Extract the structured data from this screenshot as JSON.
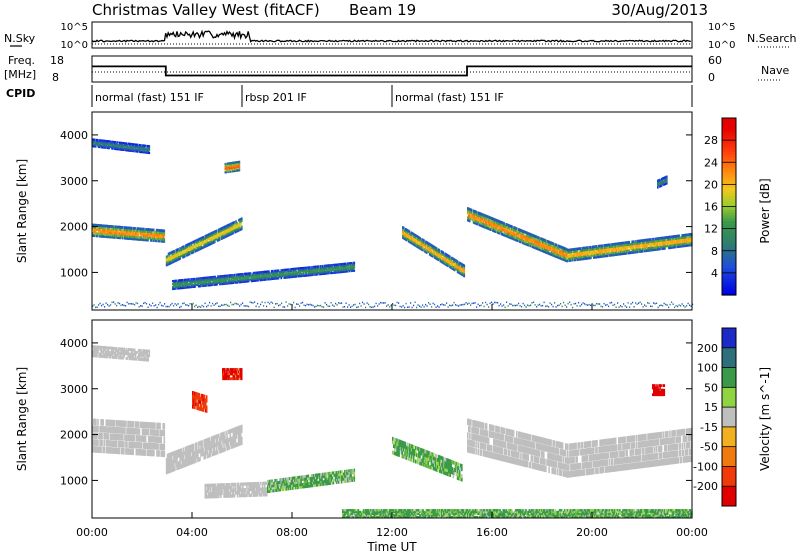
{
  "header": {
    "title": "Christmas Valley West (fitACF)",
    "beam": "Beam 19",
    "date": "30/Aug/2013"
  },
  "top_panels": {
    "nsky_label": "N.Sky",
    "nsearch_label": "N.Search",
    "nave_label": "Nave",
    "freq_label": "Freq.",
    "freq_unit": "[MHz]",
    "cpid_label": "CPID",
    "count_tick_high": "10^5",
    "count_tick_low": "10^0",
    "freq_ticks": [
      "18",
      "8"
    ],
    "nave_ticks": [
      "60",
      "0"
    ]
  },
  "cpid_segments": [
    {
      "label": "normal (fast) 151 IF",
      "start": 0,
      "end": 6
    },
    {
      "label": "rbsp 201 IF",
      "start": 6,
      "end": 12
    },
    {
      "label": "normal (fast) 151 IF",
      "start": 12,
      "end": 24
    }
  ],
  "axes": {
    "xlabel": "Time UT",
    "xticks": [
      "00:00",
      "04:00",
      "08:00",
      "12:00",
      "16:00",
      "20:00",
      "00:00"
    ],
    "ylabel": "Slant Range [km]",
    "yticks": [
      "1000",
      "2000",
      "3000",
      "4000"
    ]
  },
  "power_scale": {
    "label": "Power [dB]",
    "ticks": [
      "4",
      "8",
      "12",
      "16",
      "20",
      "24",
      "28"
    ]
  },
  "velocity_scale": {
    "label": "Velocity [m s^-1]",
    "ticks": [
      "200",
      "100",
      "50",
      "15",
      "-15",
      "-50",
      "-100",
      "-200"
    ]
  },
  "chart_data": {
    "type": "heatmap",
    "x_range_hours": [
      0,
      24
    ],
    "y_range_km": [
      180,
      4500
    ],
    "freq_mhz": [
      {
        "start": 0,
        "end": 2.95,
        "value": 14
      },
      {
        "start": 2.95,
        "end": 15.0,
        "value": 10.5
      },
      {
        "start": 15.0,
        "end": 24,
        "value": 14
      }
    ],
    "power_bands": [
      {
        "t0": 0.0,
        "t1": 2.9,
        "r_start": 1950,
        "r_end": 1820,
        "width": 230,
        "peak": 26
      },
      {
        "t0": 0.0,
        "t1": 2.3,
        "r_start": 3850,
        "r_end": 3700,
        "width": 150,
        "peak": 11
      },
      {
        "t0": 2.95,
        "t1": 6.0,
        "r_start": 1300,
        "r_end": 2100,
        "width": 220,
        "peak": 22
      },
      {
        "t0": 3.2,
        "t1": 10.5,
        "r_start": 750,
        "r_end": 1150,
        "width": 170,
        "peak": 14
      },
      {
        "t0": 5.3,
        "t1": 5.9,
        "r_start": 3300,
        "r_end": 3350,
        "width": 180,
        "peak": 28
      },
      {
        "t0": 12.4,
        "t1": 14.9,
        "r_start": 1900,
        "r_end": 1050,
        "width": 220,
        "peak": 24
      },
      {
        "t0": 15.0,
        "t1": 19.0,
        "r_start": 2300,
        "r_end": 1400,
        "width": 250,
        "peak": 26
      },
      {
        "t0": 19.0,
        "t1": 24.0,
        "r_start": 1400,
        "r_end": 1750,
        "width": 230,
        "peak": 24
      },
      {
        "t0": 22.6,
        "t1": 23.0,
        "r_start": 2950,
        "r_end": 3050,
        "width": 150,
        "peak": 12
      }
    ],
    "velocity_regions": [
      {
        "t0": 0.0,
        "t1": 2.9,
        "r_start": 2050,
        "r_end": 1950,
        "width": 600,
        "class": "ground",
        "value": 0
      },
      {
        "t0": 0.0,
        "t1": 2.3,
        "r_start": 3850,
        "r_end": 3750,
        "width": 200,
        "class": "ground",
        "value": 0
      },
      {
        "t0": 2.95,
        "t1": 6.0,
        "r_start": 1400,
        "r_end": 2050,
        "width": 350,
        "class": "ground",
        "value": 0
      },
      {
        "t0": 4.5,
        "t1": 7.0,
        "r_start": 800,
        "r_end": 850,
        "width": 250,
        "class": "ground",
        "value": 0
      },
      {
        "t0": 7.0,
        "t1": 10.5,
        "r_start": 900,
        "r_end": 1150,
        "width": 220,
        "class": "iono",
        "value": 35
      },
      {
        "t0": 5.2,
        "t1": 6.0,
        "r_start": 3350,
        "r_end": 3350,
        "width": 200,
        "class": "iono",
        "value": -180
      },
      {
        "t0": 4.0,
        "t1": 4.6,
        "r_start": 2800,
        "r_end": 2700,
        "width": 300,
        "class": "iono",
        "value": -150
      },
      {
        "t0": 12.0,
        "t1": 14.8,
        "r_start": 1800,
        "r_end": 1200,
        "width": 300,
        "class": "iono",
        "value": 40
      },
      {
        "t0": 15.0,
        "t1": 19.0,
        "r_start": 2050,
        "r_end": 1500,
        "width": 600,
        "class": "ground",
        "value": 0
      },
      {
        "t0": 19.0,
        "t1": 24.0,
        "r_start": 1500,
        "r_end": 1850,
        "width": 600,
        "class": "ground",
        "value": 0
      },
      {
        "t0": 22.4,
        "t1": 22.9,
        "r_start": 3000,
        "r_end": 3000,
        "width": 200,
        "class": "iono",
        "value": -200
      },
      {
        "t0": 10.0,
        "t1": 24.0,
        "r_start": 300,
        "r_end": 300,
        "width": 150,
        "class": "iono",
        "value": 40
      }
    ]
  }
}
